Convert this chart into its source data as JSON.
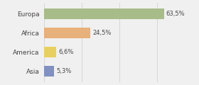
{
  "categories": [
    "Europa",
    "Africa",
    "America",
    "Asia"
  ],
  "values": [
    63.5,
    24.5,
    6.6,
    5.3
  ],
  "labels": [
    "63,5%",
    "24,5%",
    "6,6%",
    "5,3%"
  ],
  "bar_colors": [
    "#a8bc8a",
    "#e8b07a",
    "#e8d060",
    "#8090c0"
  ],
  "background_color": "#f0f0f0",
  "xlim": [
    0,
    80
  ],
  "bar_height": 0.55,
  "label_fontsize": 6.0,
  "tick_fontsize": 6.5
}
